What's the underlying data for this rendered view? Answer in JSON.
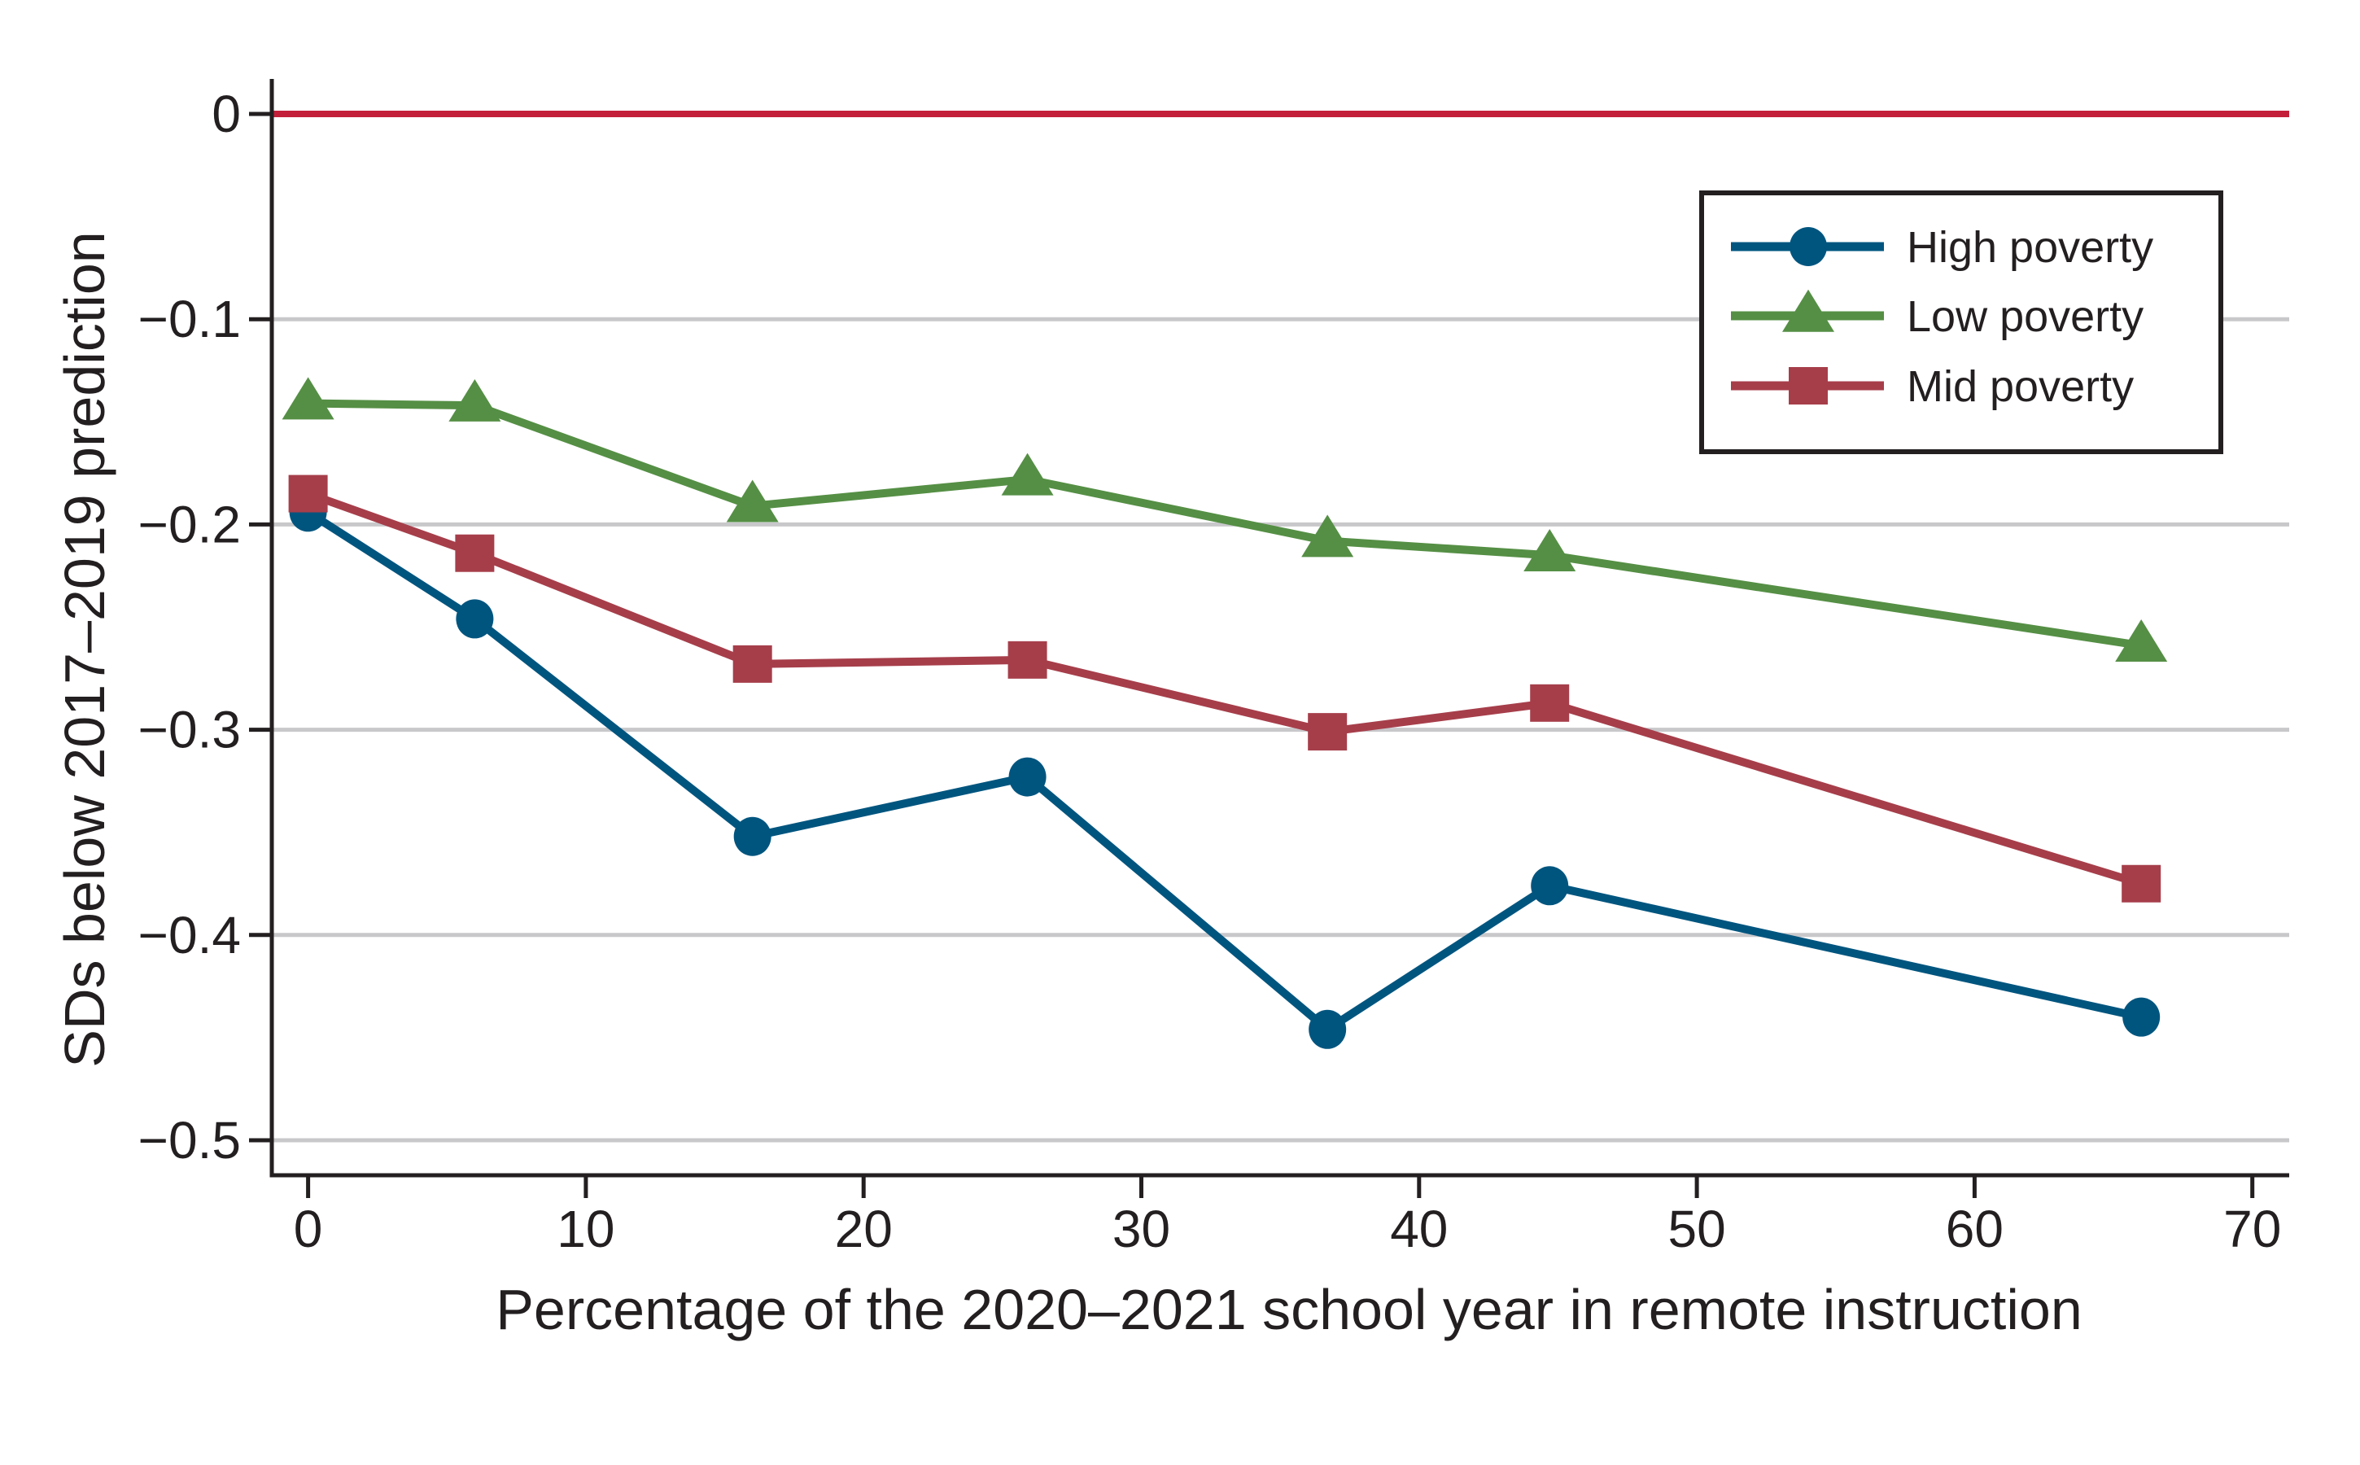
{
  "chart_data": {
    "type": "line",
    "title": "",
    "xlabel": "Percentage of the 2020–2021 school year in remote instruction",
    "ylabel": "SDs below 2017–2019 prediction",
    "xlim": [
      -1.3,
      71.4
    ],
    "ylim": [
      -0.526,
      0.016
    ],
    "xticks": [
      0,
      10,
      20,
      30,
      40,
      50,
      60,
      70
    ],
    "xtick_labels": [
      "0",
      "10",
      "20",
      "30",
      "40",
      "50",
      "60",
      "70"
    ],
    "yticks": [
      0,
      -0.1,
      -0.2,
      -0.3,
      -0.4,
      -0.5
    ],
    "ytick_labels": [
      "0",
      "−0.1",
      "−0.2",
      "−0.3",
      "−0.4",
      "−0.5"
    ],
    "grid": "horizontal",
    "reference_line": {
      "y": 0,
      "color": "#c41f3a"
    },
    "legend_position": "top-right",
    "x": [
      0,
      6,
      16,
      25.9,
      36.7,
      44.7,
      66
    ],
    "series": [
      {
        "name": "High poverty",
        "marker": "circle",
        "color": "#00557f",
        "values": [
          -0.194,
          -0.246,
          -0.352,
          -0.323,
          -0.446,
          -0.376,
          -0.44
        ]
      },
      {
        "name": "Low poverty",
        "marker": "triangle",
        "color": "#558f45",
        "values": [
          -0.141,
          -0.142,
          -0.191,
          -0.178,
          -0.208,
          -0.215,
          -0.259
        ]
      },
      {
        "name": "Mid poverty",
        "marker": "square",
        "color": "#a63e4a",
        "values": [
          -0.185,
          -0.214,
          -0.268,
          -0.266,
          -0.301,
          -0.287,
          -0.375
        ]
      }
    ]
  },
  "colors": {
    "axis": "#231f20",
    "grid": "#c8c8cb",
    "background": "#ffffff"
  }
}
